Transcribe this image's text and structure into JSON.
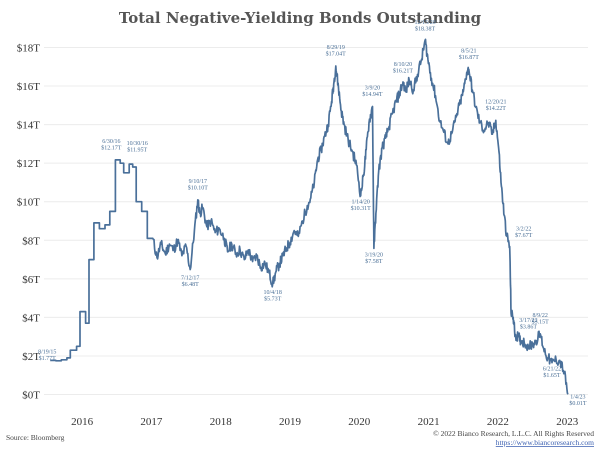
{
  "chart_data": {
    "type": "line",
    "title": "Total Negative-Yielding Bonds Outstanding",
    "xlabel": "",
    "ylabel": "",
    "xlim": [
      2015.45,
      2023.3
    ],
    "ylim": [
      -0.7,
      18.7
    ],
    "y_ticks": [
      0,
      2,
      4,
      6,
      8,
      10,
      12,
      14,
      16,
      18
    ],
    "y_tick_labels": [
      "$0T",
      "$2T",
      "$4T",
      "$6T",
      "$8T",
      "$10T",
      "$12T",
      "$14T",
      "$16T",
      "$18T"
    ],
    "x_ticks": [
      2016,
      2017,
      2018,
      2019,
      2020,
      2021,
      2022,
      2023
    ],
    "x_tick_labels": [
      "2016",
      "2017",
      "2018",
      "2019",
      "2020",
      "2021",
      "2022",
      "2023"
    ],
    "grid": "horizontal",
    "legend": "none",
    "color": "#4a709a",
    "series": [
      {
        "points": [
          [
            2015.54,
            1.77
          ],
          [
            2015.62,
            1.75
          ],
          [
            2015.7,
            1.8
          ],
          [
            2015.78,
            1.9
          ],
          [
            2015.83,
            2.3
          ],
          [
            2015.92,
            2.5
          ],
          [
            2015.97,
            4.3
          ],
          [
            2016.05,
            3.7
          ],
          [
            2016.1,
            7.0
          ],
          [
            2016.17,
            8.9
          ],
          [
            2016.25,
            8.6
          ],
          [
            2016.33,
            8.8
          ],
          [
            2016.4,
            9.5
          ],
          [
            2016.48,
            12.17
          ],
          [
            2016.55,
            12.0
          ],
          [
            2016.6,
            11.5
          ],
          [
            2016.68,
            11.95
          ],
          [
            2016.73,
            11.8
          ],
          [
            2016.78,
            10.0
          ],
          [
            2016.86,
            9.5
          ],
          [
            2016.94,
            8.1
          ],
          [
            2017.02,
            8.1
          ],
          [
            2017.08,
            7.1
          ],
          [
            2017.14,
            7.8
          ],
          [
            2017.2,
            7.3
          ],
          [
            2017.26,
            7.8
          ],
          [
            2017.32,
            7.5
          ],
          [
            2017.38,
            8.0
          ],
          [
            2017.44,
            7.2
          ],
          [
            2017.5,
            7.7
          ],
          [
            2017.56,
            6.48
          ],
          [
            2017.62,
            8.5
          ],
          [
            2017.67,
            10.1
          ],
          [
            2017.7,
            9.4
          ],
          [
            2017.74,
            9.7
          ],
          [
            2017.8,
            8.7
          ],
          [
            2017.86,
            9.0
          ],
          [
            2017.92,
            8.4
          ],
          [
            2017.98,
            8.6
          ],
          [
            2018.05,
            8.1
          ],
          [
            2018.1,
            7.4
          ],
          [
            2018.16,
            7.8
          ],
          [
            2018.22,
            7.3
          ],
          [
            2018.28,
            7.5
          ],
          [
            2018.34,
            7.0
          ],
          [
            2018.4,
            7.5
          ],
          [
            2018.46,
            6.9
          ],
          [
            2018.52,
            7.2
          ],
          [
            2018.58,
            6.6
          ],
          [
            2018.64,
            6.8
          ],
          [
            2018.7,
            6.3
          ],
          [
            2018.75,
            5.73
          ],
          [
            2018.8,
            6.4
          ],
          [
            2018.85,
            6.8
          ],
          [
            2018.9,
            7.2
          ],
          [
            2018.95,
            7.6
          ],
          [
            2019.0,
            7.9
          ],
          [
            2019.06,
            8.5
          ],
          [
            2019.12,
            8.2
          ],
          [
            2019.18,
            9.0
          ],
          [
            2019.25,
            9.8
          ],
          [
            2019.3,
            10.2
          ],
          [
            2019.35,
            11.0
          ],
          [
            2019.4,
            12.2
          ],
          [
            2019.45,
            12.7
          ],
          [
            2019.5,
            13.4
          ],
          [
            2019.55,
            14.0
          ],
          [
            2019.6,
            15.2
          ],
          [
            2019.63,
            16.1
          ],
          [
            2019.66,
            17.04
          ],
          [
            2019.7,
            15.9
          ],
          [
            2019.74,
            14.7
          ],
          [
            2019.78,
            14.0
          ],
          [
            2019.84,
            13.2
          ],
          [
            2019.9,
            12.6
          ],
          [
            2019.96,
            11.9
          ],
          [
            2020.02,
            10.31
          ],
          [
            2020.06,
            11.4
          ],
          [
            2020.1,
            12.7
          ],
          [
            2020.14,
            14.1
          ],
          [
            2020.19,
            14.94
          ],
          [
            2020.21,
            7.58
          ],
          [
            2020.24,
            9.4
          ],
          [
            2020.28,
            11.6
          ],
          [
            2020.33,
            12.8
          ],
          [
            2020.38,
            13.3
          ],
          [
            2020.43,
            13.9
          ],
          [
            2020.48,
            14.6
          ],
          [
            2020.53,
            15.2
          ],
          [
            2020.58,
            15.6
          ],
          [
            2020.63,
            16.21
          ],
          [
            2020.67,
            15.7
          ],
          [
            2020.72,
            16.3
          ],
          [
            2020.78,
            15.8
          ],
          [
            2020.84,
            16.6
          ],
          [
            2020.9,
            17.4
          ],
          [
            2020.95,
            18.38
          ],
          [
            2020.99,
            17.4
          ],
          [
            2021.04,
            16.4
          ],
          [
            2021.1,
            15.5
          ],
          [
            2021.16,
            14.2
          ],
          [
            2021.22,
            13.6
          ],
          [
            2021.28,
            13.0
          ],
          [
            2021.34,
            13.6
          ],
          [
            2021.4,
            14.4
          ],
          [
            2021.46,
            15.2
          ],
          [
            2021.5,
            15.7
          ],
          [
            2021.55,
            16.7
          ],
          [
            2021.58,
            16.87
          ],
          [
            2021.63,
            15.8
          ],
          [
            2021.68,
            14.9
          ],
          [
            2021.74,
            14.1
          ],
          [
            2021.8,
            13.7
          ],
          [
            2021.86,
            14.1
          ],
          [
            2021.92,
            13.5
          ],
          [
            2021.97,
            14.22
          ],
          [
            2022.01,
            12.8
          ],
          [
            2022.05,
            10.8
          ],
          [
            2022.09,
            9.3
          ],
          [
            2022.13,
            8.2
          ],
          [
            2022.17,
            7.67
          ],
          [
            2022.19,
            4.2
          ],
          [
            2022.22,
            4.0
          ],
          [
            2022.25,
            3.1
          ],
          [
            2022.29,
            3.0
          ],
          [
            2022.33,
            2.8
          ],
          [
            2022.38,
            2.7
          ],
          [
            2022.44,
            2.5
          ],
          [
            2022.5,
            2.6
          ],
          [
            2022.55,
            2.8
          ],
          [
            2022.61,
            3.15
          ],
          [
            2022.66,
            2.4
          ],
          [
            2022.72,
            1.9
          ],
          [
            2022.78,
            1.65
          ],
          [
            2022.84,
            1.8
          ],
          [
            2022.9,
            1.7
          ],
          [
            2022.96,
            1.1
          ],
          [
            2023.01,
            0.01
          ]
        ]
      }
    ],
    "annotations": [
      {
        "date": "8/19/15",
        "value": "$1.77T",
        "x": 2015.54,
        "y": 1.77
      },
      {
        "date": "6/30/16",
        "value": "$12.17T",
        "x": 2016.48,
        "y": 12.17
      },
      {
        "date": "10/30/16",
        "value": "$11.95T",
        "x": 2016.68,
        "y": 11.95
      },
      {
        "date": "9/10/17",
        "value": "$10.10T",
        "x": 2017.67,
        "y": 10.1
      },
      {
        "date": "7/12/17",
        "value": "$6.48T",
        "x": 2017.56,
        "y": 6.48
      },
      {
        "date": "10/4/18",
        "value": "$5.73T",
        "x": 2018.75,
        "y": 5.73
      },
      {
        "date": "8/29/19",
        "value": "$17.04T",
        "x": 2019.66,
        "y": 17.04
      },
      {
        "date": "1/14/20",
        "value": "$10.31T",
        "x": 2020.02,
        "y": 10.31
      },
      {
        "date": "3/9/20",
        "value": "$14.94T",
        "x": 2020.19,
        "y": 14.94
      },
      {
        "date": "3/19/20",
        "value": "$7.58T",
        "x": 2020.21,
        "y": 7.58
      },
      {
        "date": "8/10/20",
        "value": "$16.21T",
        "x": 2020.63,
        "y": 16.21
      },
      {
        "date": "12/15/20",
        "value": "$18.38T",
        "x": 2020.95,
        "y": 18.38
      },
      {
        "date": "8/5/21",
        "value": "$16.87T",
        "x": 2021.58,
        "y": 16.87
      },
      {
        "date": "12/20/21",
        "value": "$14.22T",
        "x": 2021.97,
        "y": 14.22
      },
      {
        "date": "3/2/22",
        "value": "$7.67T",
        "x": 2022.17,
        "y": 7.67
      },
      {
        "date": "3/17/22",
        "value": "$3.86T",
        "x": 2022.21,
        "y": 3.86
      },
      {
        "date": "8/9/22",
        "value": "$3.15T",
        "x": 2022.61,
        "y": 3.15
      },
      {
        "date": "6/21/22",
        "value": "$1.65T",
        "x": 2022.78,
        "y": 1.65
      },
      {
        "date": "1/4/23",
        "value": "$0.01T",
        "x": 2023.01,
        "y": 0.01
      }
    ]
  },
  "footer": {
    "source": "Source: Bloomberg",
    "copyright": "© 2022 Bianco Research, L.L.C. All Rights Reserved",
    "url": "https://www.biancoresearch.com"
  }
}
